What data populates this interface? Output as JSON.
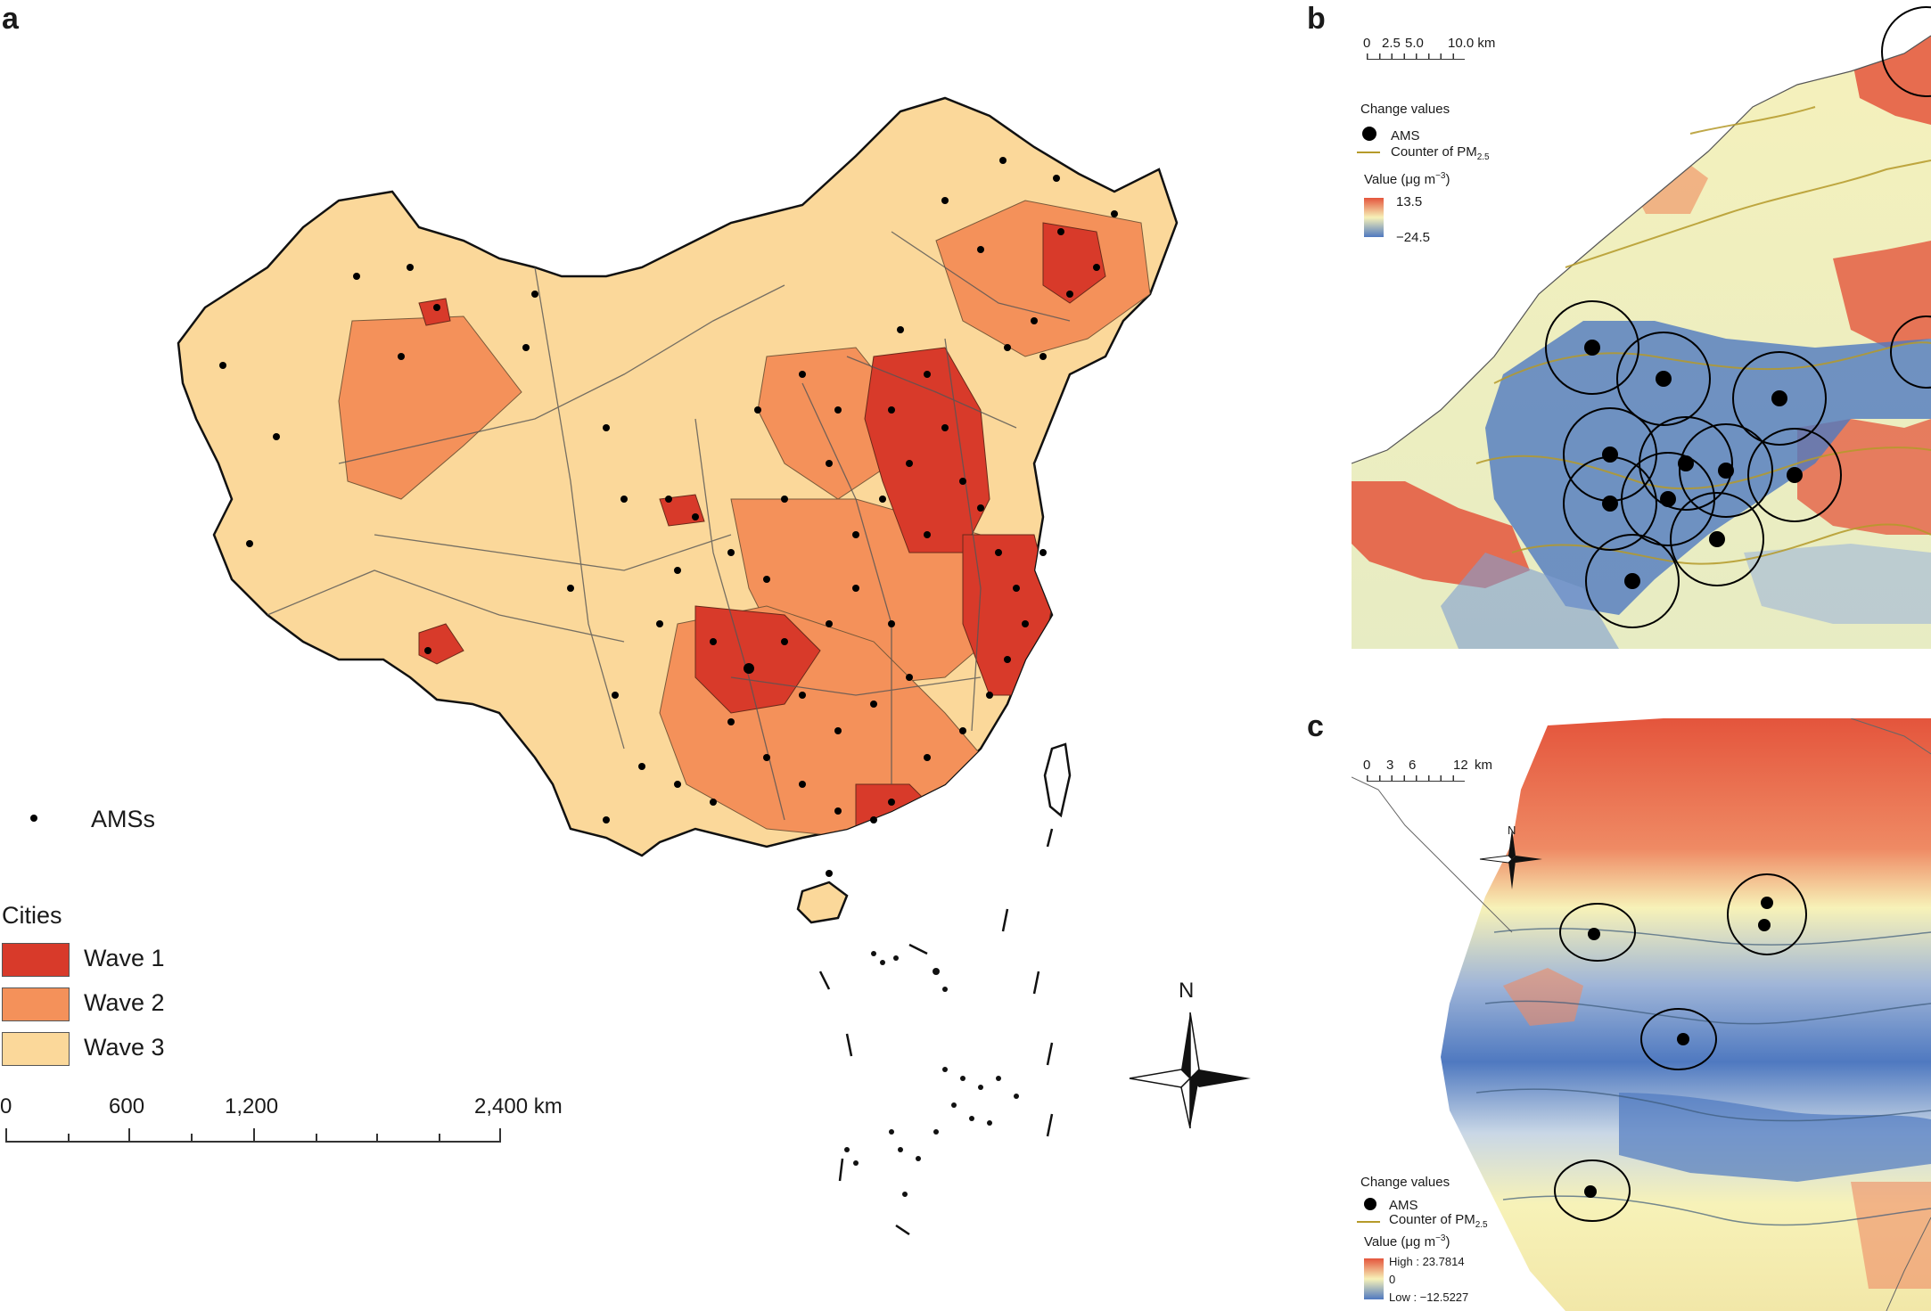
{
  "panel_a": {
    "letter": "a",
    "amss_label": "AMSs",
    "cities_label": "Cities",
    "waves": [
      {
        "label": "Wave 1",
        "color": "#d83a2a"
      },
      {
        "label": "Wave 2",
        "color": "#f4915a"
      },
      {
        "label": "Wave 3",
        "color": "#fbd89a"
      }
    ],
    "scale_labels": [
      "0",
      "600",
      "1,200",
      "2,400 km"
    ],
    "north_label": "N"
  },
  "panel_b": {
    "letter": "b",
    "scale_labels": [
      "0",
      "2.5",
      "5.0",
      "10.0 km"
    ],
    "legend_title": "Change values",
    "ams_label": "AMS",
    "contour_label": "Counter of PM",
    "contour_sub": "2.5",
    "value_label": "Value (μg m",
    "value_sup": "−3",
    "value_end": ")",
    "max_label": "13.5",
    "min_label": "−24.5"
  },
  "panel_c": {
    "letter": "c",
    "scale_labels": [
      "0",
      "3",
      "6",
      "12",
      "km"
    ],
    "north_label": "N",
    "legend_title": "Change values",
    "ams_label": "AMS",
    "contour_label": "Counter of PM",
    "contour_sub": "2.5",
    "value_label": "Value (μg m",
    "value_sup": "−3",
    "value_end": ")",
    "high_label": "High : 23.7814",
    "zero_label": "0",
    "low_label": "Low : −12.5227"
  },
  "colors": {
    "wave1": "#d83a2a",
    "wave2": "#f4915a",
    "wave3": "#fbd89a",
    "increase": "#e4553c",
    "decrease": "#4f79c0",
    "neutral": "#f7f2b8",
    "contour": "#b59a2a"
  }
}
